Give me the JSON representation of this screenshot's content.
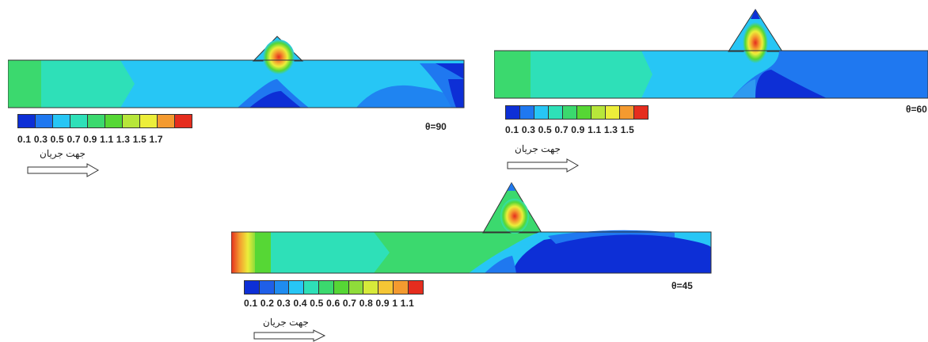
{
  "panels": [
    {
      "angle_label": "θ=90",
      "legend_colors": [
        "#0d2fd6",
        "#1f78f0",
        "#27c6f5",
        "#2ee0b8",
        "#3bd96e",
        "#56d735",
        "#b7e63a",
        "#ecee3a",
        "#f49a2f",
        "#e52d1e"
      ],
      "legend_ticks": "0.1  0.3  0.5  0.7  0.9  1.1  1.3  1.5  1.7",
      "flow_direction": "جهت جریان"
    },
    {
      "angle_label": "θ=60",
      "legend_colors": [
        "#0d2fd6",
        "#1f78f0",
        "#27c6f5",
        "#2ee0b8",
        "#3bd96e",
        "#56d735",
        "#b7e63a",
        "#ecee3a",
        "#f49a2f",
        "#e52d1e"
      ],
      "legend_ticks": "0.1  0.3  0.5  0.7  0.9  1.1  1.3  1.5",
      "flow_direction": "جهت جریان"
    },
    {
      "angle_label": "θ=45",
      "legend_colors": [
        "#0d2fd6",
        "#1f5fe8",
        "#1f8cf0",
        "#27c6f5",
        "#2ee0b8",
        "#3bd96e",
        "#56d735",
        "#8fdc3a",
        "#d7ea3a",
        "#f5c635",
        "#f49a2f",
        "#e52d1e"
      ],
      "legend_ticks": "0.1  0.2  0.3  0.4  0.5  0.6  0.7  0.8  0.9   1   1.1",
      "flow_direction": "جهت جریان"
    }
  ]
}
